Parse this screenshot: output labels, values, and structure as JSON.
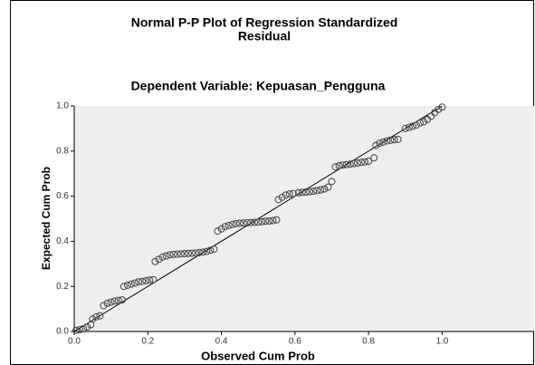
{
  "chart_data": {
    "type": "scatter",
    "title": [
      "Normal P-P Plot of Regression Standardized",
      "Residual"
    ],
    "subtitle": "Dependent Variable: Kepuasan_Pengguna",
    "x_label": "Observed Cum Prob",
    "y_label": "Expected Cum Prob",
    "xlim": [
      0,
      1.25
    ],
    "ylim": [
      0,
      1
    ],
    "xticks": [
      {
        "value": 0,
        "label": "0.0"
      },
      {
        "value": 0.2,
        "label": "0.2"
      },
      {
        "value": 0.4,
        "label": "0.4"
      },
      {
        "value": 0.6,
        "label": "0.6"
      },
      {
        "value": 0.8,
        "label": "0.8"
      },
      {
        "value": 1,
        "label": "1.0"
      }
    ],
    "yticks": [
      {
        "value": 0,
        "label": "0.0"
      },
      {
        "value": 0.2,
        "label": "0.2"
      },
      {
        "value": 0.4,
        "label": "0.4"
      },
      {
        "value": 0.6,
        "label": "0.6"
      },
      {
        "value": 0.8,
        "label": "0.8"
      },
      {
        "value": 1,
        "label": "1.0"
      }
    ],
    "color": "#444444",
    "background": "#eeeeee",
    "reference_line": {
      "x": [
        0,
        1
      ],
      "values": [
        0,
        1
      ]
    },
    "x": [
      0.005,
      0.015,
      0.025,
      0.035,
      0.045,
      0.05,
      0.06,
      0.07,
      0.08,
      0.09,
      0.1,
      0.11,
      0.12,
      0.13,
      0.135,
      0.145,
      0.155,
      0.165,
      0.175,
      0.185,
      0.195,
      0.205,
      0.215,
      0.22,
      0.23,
      0.24,
      0.25,
      0.26,
      0.27,
      0.28,
      0.29,
      0.3,
      0.31,
      0.32,
      0.33,
      0.34,
      0.35,
      0.36,
      0.37,
      0.38,
      0.39,
      0.4,
      0.41,
      0.42,
      0.43,
      0.44,
      0.45,
      0.46,
      0.47,
      0.48,
      0.49,
      0.5,
      0.51,
      0.52,
      0.53,
      0.54,
      0.55,
      0.555,
      0.565,
      0.575,
      0.585,
      0.595,
      0.61,
      0.62,
      0.63,
      0.64,
      0.65,
      0.66,
      0.67,
      0.68,
      0.69,
      0.7,
      0.71,
      0.72,
      0.73,
      0.74,
      0.75,
      0.76,
      0.77,
      0.78,
      0.79,
      0.8,
      0.815,
      0.82,
      0.83,
      0.84,
      0.85,
      0.86,
      0.87,
      0.88,
      0.9,
      0.91,
      0.92,
      0.93,
      0.94,
      0.95,
      0.96,
      0.97,
      0.98,
      0.99,
      1.0
    ],
    "values": [
      0.005,
      0.008,
      0.012,
      0.02,
      0.03,
      0.055,
      0.065,
      0.07,
      0.115,
      0.125,
      0.13,
      0.135,
      0.138,
      0.14,
      0.2,
      0.205,
      0.21,
      0.215,
      0.22,
      0.222,
      0.225,
      0.228,
      0.23,
      0.31,
      0.32,
      0.33,
      0.335,
      0.34,
      0.342,
      0.343,
      0.344,
      0.345,
      0.346,
      0.347,
      0.348,
      0.35,
      0.352,
      0.355,
      0.36,
      0.365,
      0.445,
      0.455,
      0.465,
      0.47,
      0.475,
      0.478,
      0.48,
      0.481,
      0.482,
      0.483,
      0.484,
      0.485,
      0.487,
      0.489,
      0.49,
      0.492,
      0.495,
      0.585,
      0.595,
      0.605,
      0.61,
      0.612,
      0.615,
      0.617,
      0.618,
      0.62,
      0.622,
      0.625,
      0.628,
      0.632,
      0.64,
      0.665,
      0.73,
      0.735,
      0.738,
      0.74,
      0.742,
      0.745,
      0.747,
      0.75,
      0.752,
      0.755,
      0.77,
      0.825,
      0.835,
      0.84,
      0.845,
      0.848,
      0.85,
      0.852,
      0.9,
      0.905,
      0.91,
      0.915,
      0.925,
      0.93,
      0.94,
      0.955,
      0.97,
      0.985,
      0.995
    ]
  }
}
